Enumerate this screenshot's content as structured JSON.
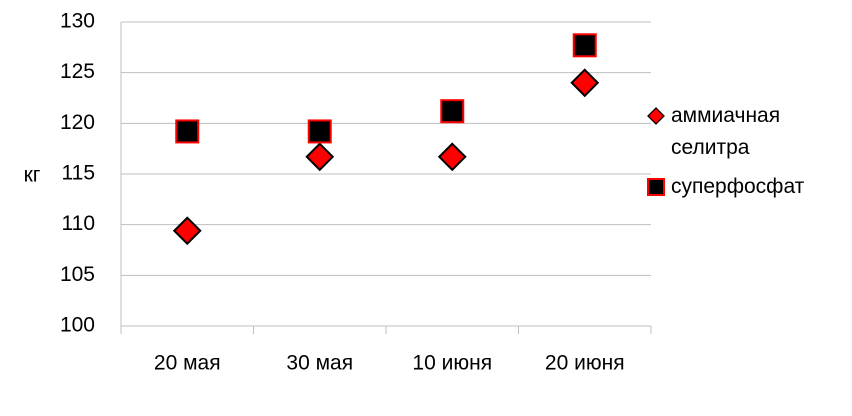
{
  "chart_data": {
    "type": "scatter",
    "y_label": "кг",
    "categories": [
      "20 мая",
      "30 мая",
      "10 июня",
      "20 июня"
    ],
    "series": [
      {
        "name": "аммиачная селитра",
        "color": "#ff0000",
        "edgecolor": "#000000",
        "marker": "diamond",
        "values": [
          109.4,
          116.7,
          116.7,
          124.0
        ]
      },
      {
        "name": "суперфосфат",
        "color": "#000000",
        "edgecolor": "#ff0000",
        "marker": "square",
        "values": [
          119.2,
          119.2,
          121.2,
          127.7
        ]
      }
    ],
    "ylim": [
      100,
      130
    ],
    "yticks": [
      100,
      105,
      110,
      115,
      120,
      125,
      130
    ],
    "grid": true,
    "legend": "right"
  }
}
